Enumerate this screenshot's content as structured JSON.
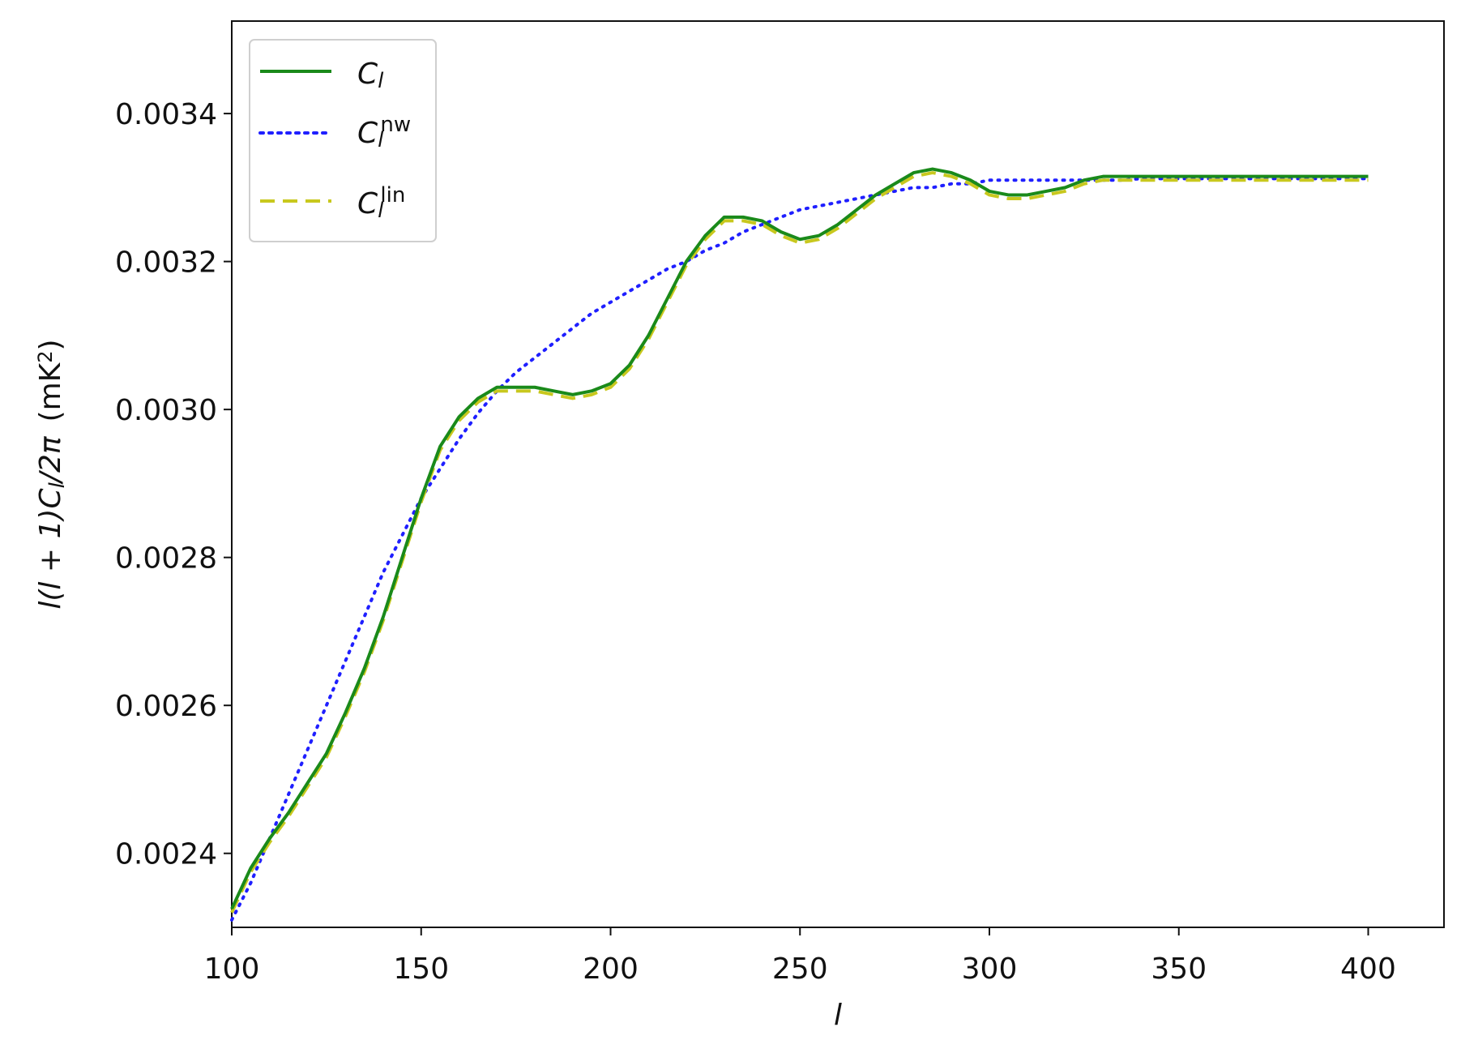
{
  "chart_data": {
    "type": "line",
    "xlabel": "l",
    "ylabel": "l(l + 1)C_l/2π   (mK²)",
    "ylabel_parts": {
      "prefix": "l(l + 1)",
      "c": "C",
      "sub": "l",
      "after": "/2π",
      "unit_before": "(mK",
      "unit_sup": "2",
      "unit_after": ")"
    },
    "xlim": [
      100,
      420
    ],
    "ylim": [
      0.0023,
      0.003525
    ],
    "xticks": [
      100,
      150,
      200,
      250,
      300,
      350,
      400
    ],
    "yticks": [
      0.0024,
      0.0026,
      0.0028,
      0.003,
      0.0032,
      0.0034
    ],
    "ytick_labels": [
      "0.0024",
      "0.0026",
      "0.0028",
      "0.0030",
      "0.0032",
      "0.0034"
    ],
    "grid": false,
    "legend_position": "top-left",
    "series": [
      {
        "name": "C_l",
        "label_main": "C",
        "label_sub": "l",
        "label_sup": "",
        "color": "#1a8a1a",
        "style": "solid",
        "x": [
          100,
          105,
          110,
          115,
          120,
          125,
          130,
          135,
          140,
          145,
          150,
          155,
          160,
          165,
          170,
          175,
          180,
          185,
          190,
          195,
          200,
          205,
          210,
          215,
          220,
          225,
          230,
          235,
          240,
          245,
          250,
          255,
          260,
          265,
          270,
          275,
          280,
          285,
          290,
          295,
          300,
          305,
          310,
          315,
          320,
          325,
          330,
          335,
          340,
          345,
          350,
          355,
          360,
          365,
          370,
          375,
          380,
          385,
          390,
          395,
          400
        ],
        "values": [
          0.002325,
          0.00238,
          0.00242,
          0.002455,
          0.002495,
          0.002535,
          0.00259,
          0.00265,
          0.00272,
          0.0028,
          0.00288,
          0.00295,
          0.00299,
          0.003015,
          0.00303,
          0.00303,
          0.00303,
          0.003025,
          0.00302,
          0.003025,
          0.003035,
          0.00306,
          0.0031,
          0.00315,
          0.0032,
          0.003235,
          0.00326,
          0.00326,
          0.003255,
          0.00324,
          0.00323,
          0.003235,
          0.00325,
          0.00327,
          0.00329,
          0.003305,
          0.00332,
          0.003325,
          0.00332,
          0.00331,
          0.003295,
          0.00329,
          0.00329,
          0.003295,
          0.0033,
          0.00331,
          0.003315,
          0.003315,
          0.003315,
          0.003315,
          0.003315,
          0.003315,
          0.003315,
          0.003315,
          0.003315,
          0.003315,
          0.003315,
          0.003315,
          0.003315,
          0.003315,
          0.003315
        ]
      },
      {
        "name": "C_l^nw",
        "label_main": "C",
        "label_sub": "l",
        "label_sup": "nw",
        "color": "#1f1fff",
        "style": "dotted",
        "x": [
          100,
          105,
          110,
          115,
          120,
          125,
          130,
          135,
          140,
          145,
          150,
          155,
          160,
          165,
          170,
          175,
          180,
          185,
          190,
          195,
          200,
          205,
          210,
          215,
          220,
          225,
          230,
          235,
          240,
          245,
          250,
          255,
          260,
          265,
          270,
          275,
          280,
          285,
          290,
          295,
          300,
          305,
          310,
          315,
          320,
          325,
          330,
          335,
          340,
          345,
          350,
          355,
          360,
          365,
          370,
          375,
          380,
          385,
          390,
          395,
          400
        ],
        "values": [
          0.00231,
          0.00236,
          0.00242,
          0.00248,
          0.00254,
          0.0026,
          0.00266,
          0.00272,
          0.00278,
          0.00283,
          0.00288,
          0.00292,
          0.00296,
          0.002995,
          0.003025,
          0.00305,
          0.00307,
          0.00309,
          0.00311,
          0.00313,
          0.003145,
          0.00316,
          0.003175,
          0.00319,
          0.0032,
          0.003215,
          0.003225,
          0.00324,
          0.00325,
          0.00326,
          0.00327,
          0.003275,
          0.00328,
          0.003285,
          0.00329,
          0.003295,
          0.0033,
          0.0033,
          0.003305,
          0.003305,
          0.00331,
          0.00331,
          0.00331,
          0.00331,
          0.00331,
          0.00331,
          0.00331,
          0.00331,
          0.003312,
          0.003312,
          0.003312,
          0.003312,
          0.003312,
          0.003312,
          0.003312,
          0.003312,
          0.003312,
          0.003312,
          0.003312,
          0.003312,
          0.003312
        ]
      },
      {
        "name": "C_l^lin",
        "label_main": "C",
        "label_sub": "l",
        "label_sup": "lin",
        "color": "#c8c81e",
        "style": "dashed",
        "x": [
          100,
          105,
          110,
          115,
          120,
          125,
          130,
          135,
          140,
          145,
          150,
          155,
          160,
          165,
          170,
          175,
          180,
          185,
          190,
          195,
          200,
          205,
          210,
          215,
          220,
          225,
          230,
          235,
          240,
          245,
          250,
          255,
          260,
          265,
          270,
          275,
          280,
          285,
          290,
          295,
          300,
          305,
          310,
          315,
          320,
          325,
          330,
          335,
          340,
          345,
          350,
          355,
          360,
          365,
          370,
          375,
          380,
          385,
          390,
          395,
          400
        ],
        "values": [
          0.00232,
          0.002375,
          0.002415,
          0.00245,
          0.00249,
          0.00253,
          0.002585,
          0.002645,
          0.002715,
          0.002795,
          0.002875,
          0.002945,
          0.002985,
          0.00301,
          0.003025,
          0.003025,
          0.003025,
          0.00302,
          0.003015,
          0.00302,
          0.00303,
          0.003055,
          0.003095,
          0.003145,
          0.003195,
          0.00323,
          0.003255,
          0.003255,
          0.00325,
          0.003235,
          0.003225,
          0.00323,
          0.003245,
          0.003265,
          0.003285,
          0.0033,
          0.003315,
          0.00332,
          0.003315,
          0.003305,
          0.00329,
          0.003285,
          0.003285,
          0.00329,
          0.003295,
          0.003305,
          0.00331,
          0.00331,
          0.00331,
          0.00331,
          0.00331,
          0.00331,
          0.00331,
          0.00331,
          0.00331,
          0.00331,
          0.00331,
          0.00331,
          0.00331,
          0.00331,
          0.00331
        ]
      }
    ]
  }
}
